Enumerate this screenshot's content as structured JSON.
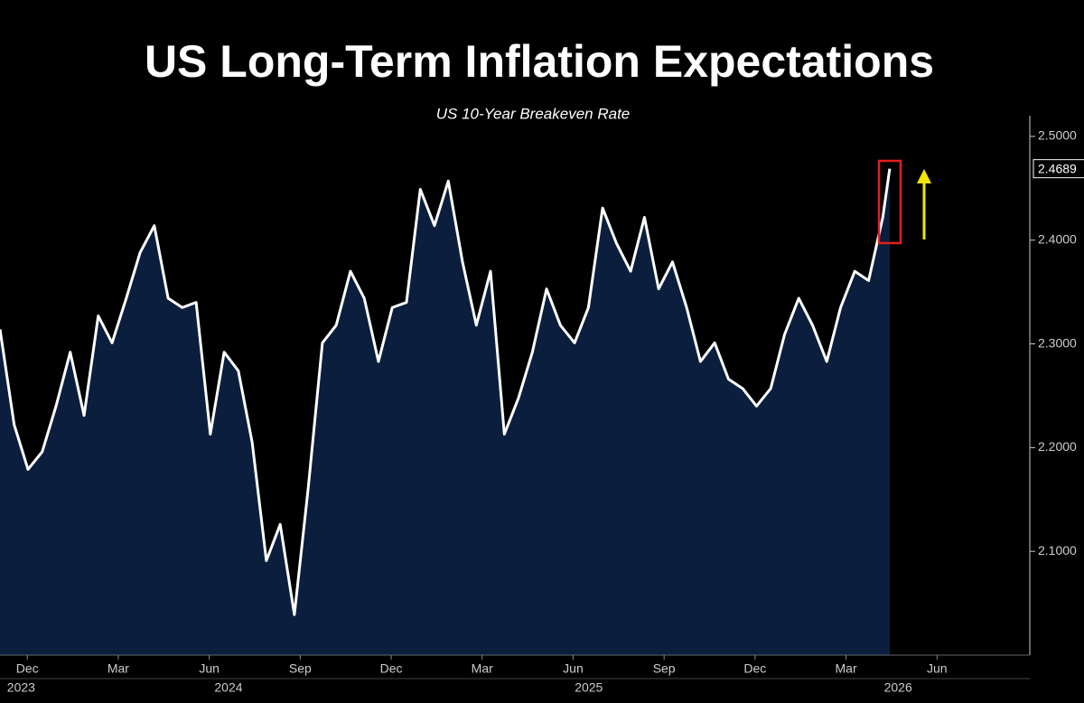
{
  "chart_data": {
    "type": "line",
    "title": "US Long-Term Inflation Expectations",
    "subtitle": "US 10-Year Breakeven Rate",
    "x": [
      2023.842,
      2023.881,
      2023.919,
      2023.958,
      2023.996,
      2024.035,
      2024.073,
      2024.112,
      2024.15,
      2024.189,
      2024.227,
      2024.266,
      2024.304,
      2024.343,
      2024.381,
      2024.42,
      2024.458,
      2024.497,
      2024.535,
      2024.574,
      2024.612,
      2024.651,
      2024.689,
      2024.728,
      2024.766,
      2024.805,
      2024.843,
      2024.882,
      2024.92,
      2024.959,
      2024.997,
      2025.036,
      2025.074,
      2025.113,
      2025.151,
      2025.19,
      2025.228,
      2025.267,
      2025.305,
      2025.344,
      2025.382,
      2025.421,
      2025.459,
      2025.498,
      2025.536,
      2025.575,
      2025.613,
      2025.652,
      2025.69,
      2025.729,
      2025.767,
      2025.806,
      2025.844,
      2025.883,
      2025.921,
      2025.96,
      2025.998,
      2026.037,
      2026.075,
      2026.114,
      2026.152,
      2026.191,
      2026.229,
      2026.268,
      2026.287
    ],
    "series": [
      {
        "color": "#ffffff",
        "fill": "#0b1e3d",
        "values": [
          2.314,
          2.222,
          2.179,
          2.196,
          2.24,
          2.292,
          2.231,
          2.327,
          2.301,
          2.344,
          2.388,
          2.414,
          2.344,
          2.335,
          2.34,
          2.213,
          2.292,
          2.274,
          2.205,
          2.091,
          2.126,
          2.039,
          2.161,
          2.301,
          2.318,
          2.37,
          2.344,
          2.283,
          2.335,
          2.34,
          2.449,
          2.414,
          2.457,
          2.379,
          2.318,
          2.37,
          2.213,
          2.248,
          2.292,
          2.353,
          2.318,
          2.301,
          2.335,
          2.431,
          2.397,
          2.37,
          2.422,
          2.353,
          2.379,
          2.335,
          2.283,
          2.301,
          2.266,
          2.257,
          2.24,
          2.257,
          2.309,
          2.344,
          2.318,
          2.283,
          2.335,
          2.37,
          2.361,
          2.422,
          2.4689
        ]
      }
    ],
    "xlim": [
      2023.842,
      2026.672
    ],
    "xticks": [
      {
        "value": 2023.917,
        "label": "Dec"
      },
      {
        "value": 2024.167,
        "label": "Mar"
      },
      {
        "value": 2024.417,
        "label": "Jun"
      },
      {
        "value": 2024.667,
        "label": "Sep"
      },
      {
        "value": 2024.917,
        "label": "Dec"
      },
      {
        "value": 2025.167,
        "label": "Mar"
      },
      {
        "value": 2025.417,
        "label": "Jun"
      },
      {
        "value": 2025.667,
        "label": "Sep"
      },
      {
        "value": 2025.917,
        "label": "Dec"
      },
      {
        "value": 2026.167,
        "label": "Mar"
      },
      {
        "value": 2026.417,
        "label": "Jun"
      }
    ],
    "year_labels": [
      {
        "value": 2023.9,
        "label": "2023"
      },
      {
        "value": 2024.47,
        "label": "2024"
      },
      {
        "value": 2025.46,
        "label": "2025"
      },
      {
        "value": 2026.31,
        "label": "2026"
      }
    ],
    "ylim": [
      2.0,
      2.52
    ],
    "yticks": [
      {
        "value": 2.1,
        "label": "2.1000"
      },
      {
        "value": 2.2,
        "label": "2.2000"
      },
      {
        "value": 2.3,
        "label": "2.3000"
      },
      {
        "value": 2.4,
        "label": "2.4000"
      },
      {
        "value": 2.5,
        "label": "2.5000"
      }
    ],
    "y_axis_side": "right"
  }
}
